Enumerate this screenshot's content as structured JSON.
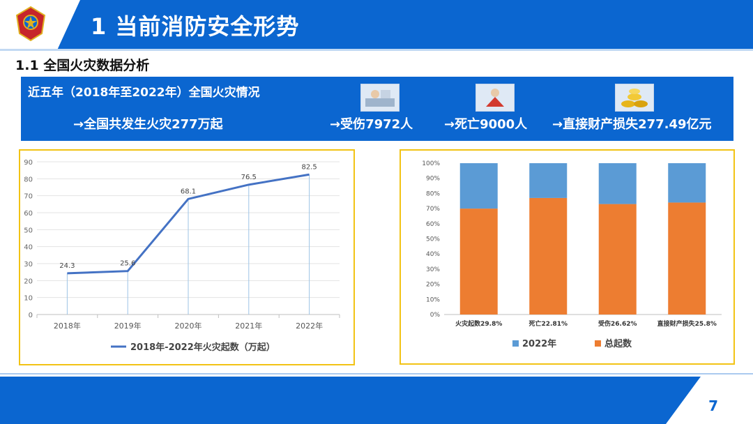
{
  "header": {
    "title": "1 当前消防安全形势"
  },
  "section": {
    "title": "1.1  全国火灾数据分析"
  },
  "summary": {
    "title": "近五年（2018年至2022年）全国火灾情况",
    "fires": "→全国共发生火灾277万起",
    "injured": "→受伤7972人",
    "deaths": "→死亡9000人",
    "loss": "→直接财产损失277.49亿元"
  },
  "page_number": "7",
  "colors": {
    "brand": "#0b66d0",
    "border": "#f2c314",
    "line": "#4472c4",
    "blue": "#5b9bd5",
    "orange": "#ed7d31"
  },
  "chart_data": [
    {
      "type": "line",
      "categories": [
        "2018年",
        "2019年",
        "2020年",
        "2021年",
        "2022年"
      ],
      "series": [
        {
          "name": "2018年-2022年火灾起数（万起）",
          "values": [
            24.3,
            25.6,
            68.1,
            76.5,
            82.5
          ]
        }
      ],
      "ylim": [
        0,
        90
      ],
      "yticks": [
        "0",
        "10",
        "20",
        "30",
        "40",
        "50",
        "60",
        "70",
        "80",
        "90"
      ],
      "grid": true,
      "legend": "bottom"
    },
    {
      "type": "bar",
      "stacked": true,
      "categories": [
        "火灾起数29.8%",
        "死亡22.81%",
        "受伤26.62%",
        "直接财产损失25.8%"
      ],
      "series": [
        {
          "name": "总起数",
          "values": [
            70,
            77,
            73,
            74
          ]
        },
        {
          "name": "2022年",
          "values": [
            30,
            23,
            27,
            26
          ]
        }
      ],
      "ylim": [
        0,
        100
      ],
      "yticks": [
        "0%",
        "10%",
        "20%",
        "30%",
        "40%",
        "50%",
        "60%",
        "70%",
        "80%",
        "90%",
        "100%"
      ],
      "legend": "bottom"
    }
  ]
}
